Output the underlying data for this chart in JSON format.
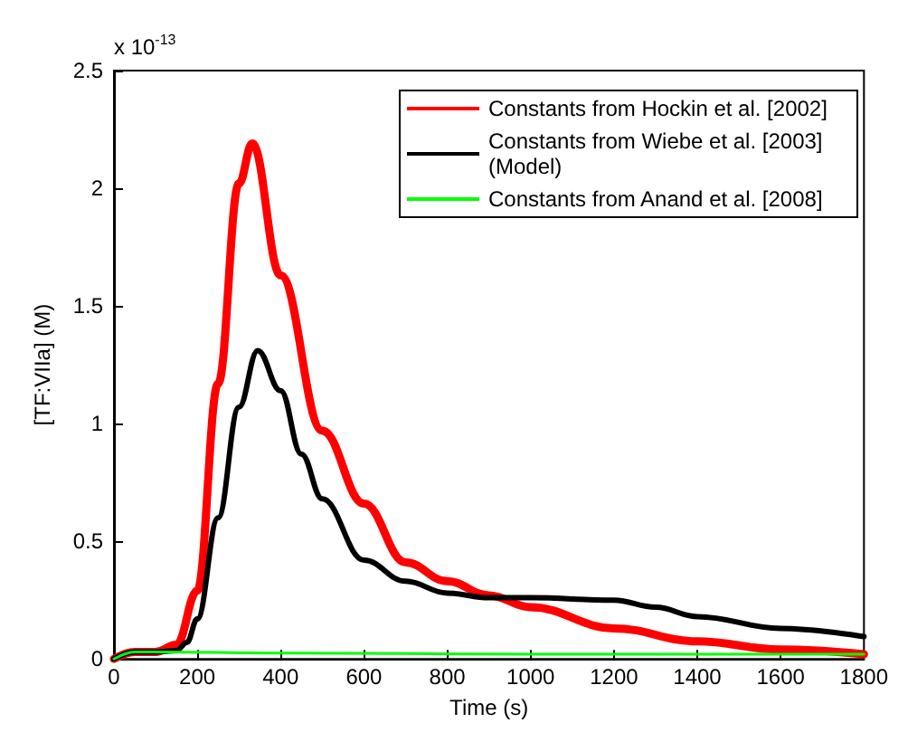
{
  "chart_data": {
    "type": "line",
    "xlabel": "Time (s)",
    "ylabel": "[TF:VIIa] (M)",
    "annotations": [
      "x 10$^{-13}$"
    ],
    "xlim": [
      0,
      1800
    ],
    "xticks": [
      0,
      200,
      400,
      600,
      800,
      1000,
      1200,
      1400,
      1600,
      1800
    ],
    "ylim": [
      0,
      2.5
    ],
    "yticks": [
      0,
      0.5,
      1,
      1.5,
      2,
      2.5
    ],
    "grid": false,
    "legend": "top right",
    "marker": "none",
    "line_style": "solid",
    "series": [
      {
        "name": "Constants from Hockin et al. [2002]",
        "color": "#ff0000",
        "x": [
          0,
          50,
          100,
          150,
          200,
          250,
          300,
          332,
          400,
          500,
          600,
          700,
          800,
          900,
          1000,
          1200,
          1400,
          1600,
          1800
        ],
        "values": [
          0,
          0.03,
          0.03,
          0.06,
          0.29,
          1.17,
          2.02,
          2.19,
          1.63,
          0.97,
          0.66,
          0.41,
          0.33,
          0.27,
          0.22,
          0.13,
          0.075,
          0.04,
          0.02
        ]
      },
      {
        "name": "Constants from Wiebe et al. [2003] (Model)",
        "color": "#000000",
        "x": [
          0,
          50,
          100,
          150,
          175,
          200,
          250,
          300,
          345,
          400,
          450,
          500,
          600,
          700,
          800,
          900,
          1000,
          1200,
          1300,
          1400,
          1600,
          1800
        ],
        "values": [
          0,
          0.03,
          0.03,
          0.035,
          0.07,
          0.17,
          0.6,
          1.07,
          1.31,
          1.14,
          0.87,
          0.68,
          0.42,
          0.33,
          0.28,
          0.26,
          0.26,
          0.25,
          0.22,
          0.18,
          0.13,
          0.095
        ]
      },
      {
        "name": "Constants from Anand et al. [2008]",
        "color": "#00ff00",
        "x": [
          0,
          50,
          100,
          400,
          1000,
          1800
        ],
        "values": [
          0,
          0.03,
          0.03,
          0.025,
          0.02,
          0.02
        ]
      }
    ]
  }
}
